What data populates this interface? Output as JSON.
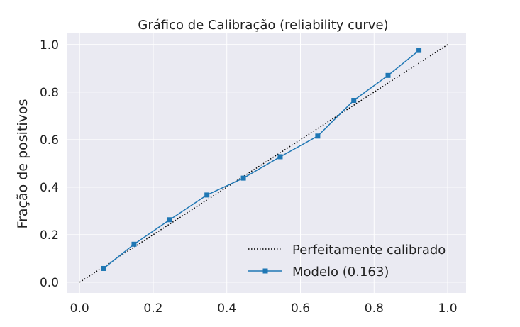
{
  "chart_data": {
    "type": "line",
    "title": "Gráfico de Calibração  (reliability curve)",
    "xlabel": "",
    "ylabel": "Fração de positivos",
    "xlim": [
      -0.035,
      1.05
    ],
    "ylim": [
      -0.045,
      1.05
    ],
    "xticks": [
      0.0,
      0.2,
      0.4,
      0.6,
      0.8,
      1.0
    ],
    "yticks": [
      0.0,
      0.2,
      0.4,
      0.6,
      0.8,
      1.0
    ],
    "xtick_labels": [
      "0.0",
      "0.2",
      "0.4",
      "0.6",
      "0.8",
      "1.0"
    ],
    "ytick_labels": [
      "0.0",
      "0.2",
      "0.4",
      "0.6",
      "0.8",
      "1.0"
    ],
    "grid": true,
    "legend_position": "bottom-right",
    "series": [
      {
        "name": "Perfeitamente calibrado",
        "style": "dotted",
        "color": "#000000",
        "x": [
          0.0,
          1.0
        ],
        "y": [
          0.0,
          1.0
        ]
      },
      {
        "name": "Modelo (0.163)",
        "style": "solid-square-markers",
        "color": "#1f77b4",
        "x": [
          0.065,
          0.148,
          0.245,
          0.346,
          0.445,
          0.545,
          0.647,
          0.745,
          0.838,
          0.922
        ],
        "y": [
          0.058,
          0.16,
          0.263,
          0.367,
          0.438,
          0.528,
          0.615,
          0.765,
          0.87,
          0.975
        ]
      }
    ],
    "colors": {
      "plot_background": "#eaeaf2",
      "grid": "#ffffff",
      "text": "#222222"
    }
  }
}
